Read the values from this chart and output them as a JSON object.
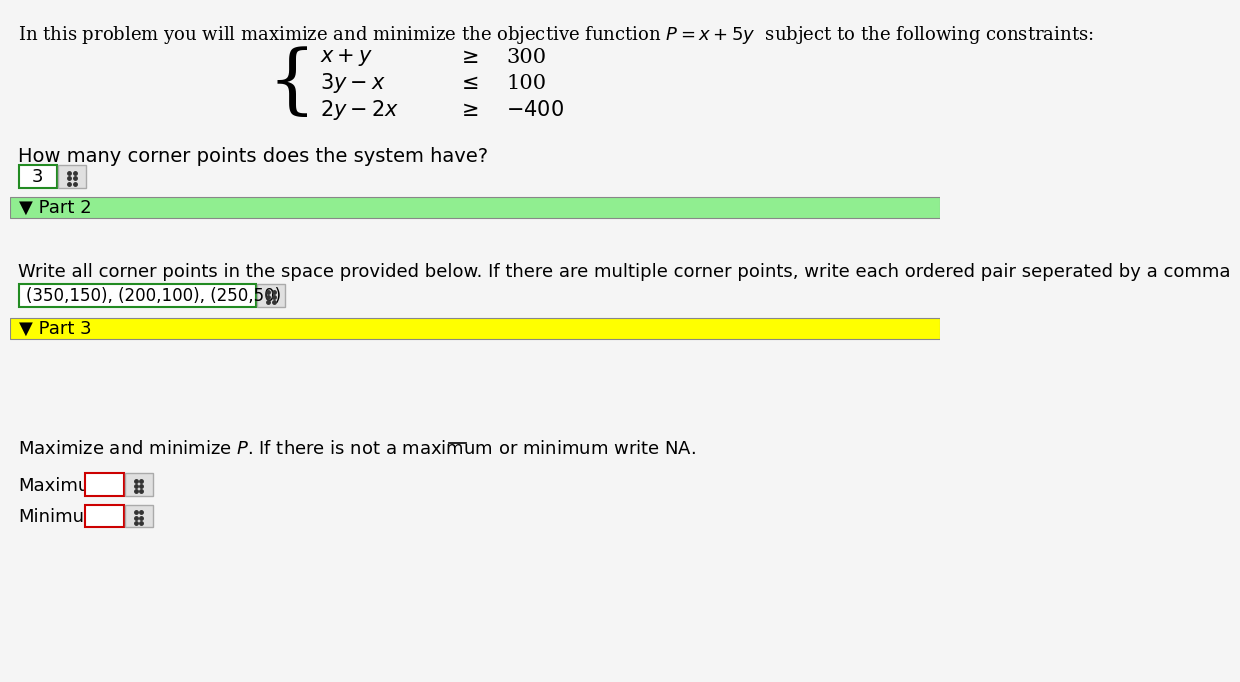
{
  "bg_color": "#f5f5f5",
  "title_text": "In this problem you will maximize and minimize the objective function $P = x + 5y$  subject to the following constraints:",
  "constraint_lines": [
    [
      "$x + y$",
      "$\\geq$",
      "300"
    ],
    [
      "$3y - x$",
      "$\\leq$",
      "100"
    ],
    [
      "$2y - 2x$",
      "$\\geq$",
      "$-400$"
    ]
  ],
  "corner_question": "How many corner points does the system have?",
  "corner_answer": "3",
  "part2_label": "▼ Part 2",
  "part2_bg": "#90ee90",
  "part2_instruction": "Write all corner points in the space provided below. If there are multiple corner points, write each ordered pair seperated by a comma",
  "part2_answer": "(350,150), (200,100), (250,50)",
  "part3_label": "▼ Part 3",
  "part3_bg": "#ffff00",
  "part3_instruction": "Maximize and minimize $P$. If there is not a maximum or minimum write NA.",
  "max_label": "Maximum",
  "min_label": "Minimum",
  "input_box_color_green": "#228B22",
  "input_box_color_red": "#cc0000"
}
